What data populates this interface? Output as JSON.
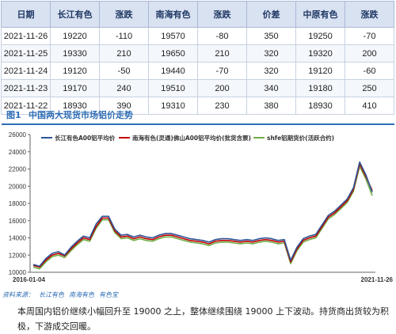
{
  "table": {
    "headers": [
      "日期",
      "长江有色",
      "涨跌",
      "南海有色",
      "涨跌",
      "价差",
      "中原有色",
      "涨跌"
    ],
    "rows": [
      [
        "2021-11-26",
        "19220",
        "-110",
        "19570",
        "-80",
        "350",
        "19250",
        "-70"
      ],
      [
        "2021-11-25",
        "19330",
        "210",
        "19650",
        "210",
        "320",
        "19320",
        "200"
      ],
      [
        "2021-11-24",
        "19120",
        "-50",
        "19440",
        "-70",
        "320",
        "19120",
        "-60"
      ],
      [
        "2021-11-23",
        "19170",
        "240",
        "19510",
        "200",
        "340",
        "19180",
        "250"
      ],
      [
        "2021-11-22",
        "18930",
        "390",
        "19310",
        "230",
        "380",
        "18930",
        "410"
      ]
    ]
  },
  "figure": {
    "number": "图1",
    "title": "中国两大现货市场铝价走势"
  },
  "chart_data": {
    "type": "line",
    "x_start": "2016-01-04",
    "x_end": "2021-11-26",
    "ylim": [
      10000,
      26000
    ],
    "yticks": [
      10000,
      12000,
      14000,
      16000,
      18000,
      20000,
      22000,
      24000,
      26000
    ],
    "ytick_labels": [
      "10000",
      "12000",
      "14000",
      "16000",
      "18000",
      "20000",
      "22000",
      "24000",
      "26000"
    ],
    "grid": false,
    "legend_position": "top",
    "series": [
      {
        "name": "长江有色A00铝平均价",
        "color": "#2f5597",
        "values": [
          10900,
          10700,
          11600,
          12200,
          12400,
          12000,
          12900,
          13600,
          14200,
          14000,
          15600,
          16500,
          16500,
          15000,
          14300,
          14400,
          14100,
          14300,
          14100,
          14000,
          14300,
          14500,
          14500,
          14300,
          14100,
          13900,
          13800,
          13700,
          13500,
          13800,
          13900,
          13900,
          13800,
          13700,
          13800,
          13700,
          13900,
          14000,
          13900,
          13700,
          13800,
          11400,
          12900,
          13900,
          14200,
          14400,
          15500,
          16600,
          17100,
          17800,
          18500,
          19800,
          22800,
          21300,
          19300
        ]
      },
      {
        "name": "南海有色(灵通)佛山A00铝平均价(批货含票)",
        "color": "#c00000",
        "values": [
          10800,
          10600,
          11400,
          12000,
          12200,
          11900,
          12700,
          13400,
          14000,
          13800,
          15300,
          16300,
          16300,
          14800,
          14100,
          14200,
          13900,
          14100,
          13900,
          13800,
          14100,
          14300,
          14300,
          14100,
          13900,
          13700,
          13600,
          13500,
          13300,
          13600,
          13700,
          13700,
          13600,
          13500,
          13600,
          13500,
          13700,
          13800,
          13700,
          13500,
          13600,
          11200,
          12700,
          13700,
          14000,
          14200,
          15300,
          16400,
          16900,
          17600,
          18300,
          19600,
          22600,
          21100,
          19500
        ]
      },
      {
        "name": "shfe铝期货价(活跃合约)",
        "color": "#70ad47",
        "values": [
          10600,
          10400,
          11200,
          11800,
          12000,
          11700,
          12500,
          13200,
          13800,
          13600,
          15100,
          16100,
          16100,
          14600,
          13900,
          14000,
          13700,
          13900,
          13700,
          13600,
          13900,
          14100,
          14100,
          13900,
          13700,
          13500,
          13400,
          13300,
          13100,
          13400,
          13500,
          13500,
          13400,
          13300,
          13400,
          13300,
          13500,
          13600,
          13500,
          13300,
          13400,
          11000,
          12500,
          13500,
          13800,
          14000,
          15100,
          16200,
          16700,
          17400,
          18100,
          19400,
          22300,
          20800,
          18900
        ]
      }
    ]
  },
  "source": {
    "label": "资料来源：",
    "items": [
      "长江有色",
      "南海有色",
      "有色宝"
    ]
  },
  "paragraph": "本周国内铝价继续小幅回升至 19000 之上，整体继续围绕 19000 上下波动。持货商出货较为积极，下游成交回暖。"
}
